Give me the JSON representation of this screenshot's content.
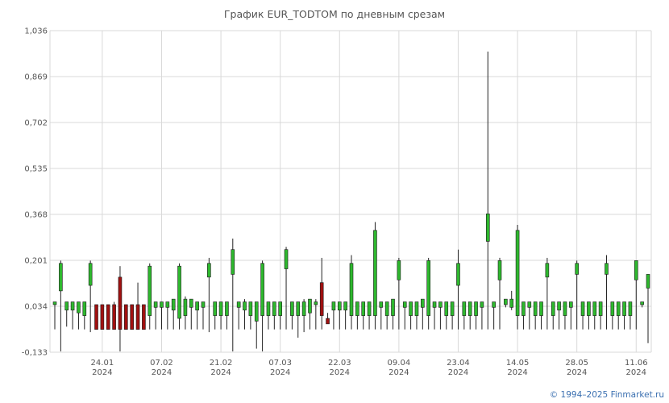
{
  "title": "График EUR_TODTOM по дневным срезам",
  "copyright": "© 1994–2025 Finmarket.ru",
  "colors": {
    "up": "#2eb82e",
    "down": "#a01010",
    "wick": "#222222",
    "grid": "#d9d9d9"
  },
  "chart_data": {
    "type": "candlestick",
    "title": "График EUR_TODTOM по дневным срезам",
    "ylim": [
      -0.133,
      1.036
    ],
    "yticks": [
      "1,036",
      "0,869",
      "0,702",
      "0,535",
      "0,368",
      "0,201",
      "0,034",
      "-0,133"
    ],
    "yticks_values": [
      1.036,
      0.869,
      0.702,
      0.535,
      0.368,
      0.201,
      0.034,
      -0.133
    ],
    "xticks": [
      {
        "index": 8,
        "line1": "24.01",
        "line2": "2024"
      },
      {
        "index": 18,
        "line1": "07.02",
        "line2": "2024"
      },
      {
        "index": 28,
        "line1": "21.02",
        "line2": "2024"
      },
      {
        "index": 38,
        "line1": "07.03",
        "line2": "2024"
      },
      {
        "index": 48,
        "line1": "22.03",
        "line2": "2024"
      },
      {
        "index": 58,
        "line1": "09.04",
        "line2": "2024"
      },
      {
        "index": 68,
        "line1": "23.04",
        "line2": "2024"
      },
      {
        "index": 78,
        "line1": "14.05",
        "line2": "2024"
      },
      {
        "index": 88,
        "line1": "28.05",
        "line2": "2024"
      },
      {
        "index": 98,
        "line1": "11.06",
        "line2": "2024"
      }
    ],
    "grid": true,
    "candles": [
      {
        "o": 0.04,
        "h": 0.05,
        "l": -0.05,
        "c": 0.05
      },
      {
        "o": 0.09,
        "h": 0.2,
        "l": -0.13,
        "c": 0.19
      },
      {
        "o": 0.02,
        "h": 0.05,
        "l": -0.04,
        "c": 0.05
      },
      {
        "o": 0.02,
        "h": 0.05,
        "l": -0.05,
        "c": 0.05
      },
      {
        "o": 0.01,
        "h": 0.05,
        "l": -0.05,
        "c": 0.05
      },
      {
        "o": 0.0,
        "h": 0.05,
        "l": -0.05,
        "c": 0.05
      },
      {
        "o": 0.11,
        "h": 0.2,
        "l": -0.06,
        "c": 0.19
      },
      {
        "o": 0.04,
        "h": 0.04,
        "l": -0.05,
        "c": -0.05
      },
      {
        "o": 0.04,
        "h": 0.04,
        "l": -0.05,
        "c": -0.05
      },
      {
        "o": 0.04,
        "h": 0.04,
        "l": -0.05,
        "c": -0.05
      },
      {
        "o": 0.04,
        "h": 0.05,
        "l": -0.05,
        "c": -0.05
      },
      {
        "o": 0.14,
        "h": 0.18,
        "l": -0.13,
        "c": -0.05
      },
      {
        "o": 0.04,
        "h": 0.04,
        "l": -0.05,
        "c": -0.05
      },
      {
        "o": 0.04,
        "h": 0.04,
        "l": -0.05,
        "c": -0.05
      },
      {
        "o": 0.04,
        "h": 0.12,
        "l": -0.05,
        "c": -0.05
      },
      {
        "o": 0.04,
        "h": 0.04,
        "l": -0.05,
        "c": -0.05
      },
      {
        "o": 0.0,
        "h": 0.19,
        "l": -0.05,
        "c": 0.18
      },
      {
        "o": 0.03,
        "h": 0.05,
        "l": -0.05,
        "c": 0.05
      },
      {
        "o": 0.03,
        "h": 0.05,
        "l": -0.05,
        "c": 0.05
      },
      {
        "o": 0.03,
        "h": 0.05,
        "l": -0.05,
        "c": 0.05
      },
      {
        "o": 0.02,
        "h": 0.06,
        "l": -0.05,
        "c": 0.06
      },
      {
        "o": -0.01,
        "h": 0.19,
        "l": -0.05,
        "c": 0.18
      },
      {
        "o": 0.0,
        "h": 0.07,
        "l": -0.05,
        "c": 0.06
      },
      {
        "o": 0.03,
        "h": 0.06,
        "l": -0.05,
        "c": 0.06
      },
      {
        "o": 0.02,
        "h": 0.05,
        "l": -0.05,
        "c": 0.05
      },
      {
        "o": 0.03,
        "h": 0.05,
        "l": -0.05,
        "c": 0.05
      },
      {
        "o": 0.14,
        "h": 0.21,
        "l": -0.06,
        "c": 0.19
      },
      {
        "o": 0.0,
        "h": 0.05,
        "l": -0.05,
        "c": 0.05
      },
      {
        "o": 0.0,
        "h": 0.05,
        "l": -0.05,
        "c": 0.05
      },
      {
        "o": 0.0,
        "h": 0.05,
        "l": -0.05,
        "c": 0.05
      },
      {
        "o": 0.15,
        "h": 0.28,
        "l": -0.13,
        "c": 0.24
      },
      {
        "o": 0.03,
        "h": 0.05,
        "l": -0.05,
        "c": 0.05
      },
      {
        "o": 0.02,
        "h": 0.06,
        "l": -0.05,
        "c": 0.05
      },
      {
        "o": 0.0,
        "h": 0.05,
        "l": -0.05,
        "c": 0.05
      },
      {
        "o": -0.02,
        "h": 0.05,
        "l": -0.12,
        "c": 0.05
      },
      {
        "o": 0.0,
        "h": 0.2,
        "l": -0.13,
        "c": 0.19
      },
      {
        "o": 0.0,
        "h": 0.05,
        "l": -0.05,
        "c": 0.05
      },
      {
        "o": 0.0,
        "h": 0.05,
        "l": -0.05,
        "c": 0.05
      },
      {
        "o": 0.0,
        "h": 0.05,
        "l": -0.05,
        "c": 0.05
      },
      {
        "o": 0.17,
        "h": 0.25,
        "l": -0.05,
        "c": 0.24
      },
      {
        "o": 0.0,
        "h": 0.05,
        "l": -0.05,
        "c": 0.05
      },
      {
        "o": 0.0,
        "h": 0.05,
        "l": -0.08,
        "c": 0.05
      },
      {
        "o": 0.0,
        "h": 0.06,
        "l": -0.06,
        "c": 0.05
      },
      {
        "o": 0.01,
        "h": 0.06,
        "l": -0.05,
        "c": 0.06
      },
      {
        "o": 0.04,
        "h": 0.06,
        "l": -0.05,
        "c": 0.05
      },
      {
        "o": 0.12,
        "h": 0.21,
        "l": -0.05,
        "c": 0.0
      },
      {
        "o": -0.01,
        "h": 0.01,
        "l": -0.02,
        "c": -0.03
      },
      {
        "o": 0.02,
        "h": 0.05,
        "l": -0.05,
        "c": 0.05
      },
      {
        "o": 0.02,
        "h": 0.05,
        "l": -0.05,
        "c": 0.05
      },
      {
        "o": 0.02,
        "h": 0.05,
        "l": -0.05,
        "c": 0.05
      },
      {
        "o": 0.0,
        "h": 0.22,
        "l": -0.05,
        "c": 0.19
      },
      {
        "o": 0.0,
        "h": 0.05,
        "l": -0.05,
        "c": 0.05
      },
      {
        "o": 0.0,
        "h": 0.05,
        "l": -0.05,
        "c": 0.05
      },
      {
        "o": 0.0,
        "h": 0.05,
        "l": -0.05,
        "c": 0.05
      },
      {
        "o": 0.0,
        "h": 0.34,
        "l": -0.05,
        "c": 0.31
      },
      {
        "o": 0.03,
        "h": 0.05,
        "l": -0.05,
        "c": 0.05
      },
      {
        "o": 0.0,
        "h": 0.05,
        "l": -0.05,
        "c": 0.05
      },
      {
        "o": 0.0,
        "h": 0.05,
        "l": -0.05,
        "c": 0.06
      },
      {
        "o": 0.13,
        "h": 0.21,
        "l": -0.05,
        "c": 0.2
      },
      {
        "o": 0.03,
        "h": 0.05,
        "l": -0.05,
        "c": 0.05
      },
      {
        "o": 0.0,
        "h": 0.05,
        "l": -0.05,
        "c": 0.05
      },
      {
        "o": 0.0,
        "h": 0.05,
        "l": -0.05,
        "c": 0.05
      },
      {
        "o": 0.03,
        "h": 0.05,
        "l": -0.05,
        "c": 0.06
      },
      {
        "o": 0.0,
        "h": 0.21,
        "l": -0.05,
        "c": 0.2
      },
      {
        "o": 0.03,
        "h": 0.05,
        "l": -0.05,
        "c": 0.05
      },
      {
        "o": 0.03,
        "h": 0.05,
        "l": -0.05,
        "c": 0.05
      },
      {
        "o": 0.0,
        "h": 0.05,
        "l": -0.05,
        "c": 0.05
      },
      {
        "o": 0.0,
        "h": 0.05,
        "l": -0.05,
        "c": 0.05
      },
      {
        "o": 0.11,
        "h": 0.24,
        "l": -0.05,
        "c": 0.19
      },
      {
        "o": 0.0,
        "h": 0.05,
        "l": -0.05,
        "c": 0.05
      },
      {
        "o": 0.0,
        "h": 0.05,
        "l": -0.05,
        "c": 0.05
      },
      {
        "o": 0.0,
        "h": 0.05,
        "l": -0.05,
        "c": 0.05
      },
      {
        "o": 0.03,
        "h": 0.05,
        "l": -0.05,
        "c": 0.05
      },
      {
        "o": 0.27,
        "h": 0.96,
        "l": -0.05,
        "c": 0.37
      },
      {
        "o": 0.03,
        "h": 0.05,
        "l": -0.05,
        "c": 0.05
      },
      {
        "o": 0.13,
        "h": 0.21,
        "l": -0.05,
        "c": 0.2
      },
      {
        "o": 0.04,
        "h": 0.06,
        "l": 0.03,
        "c": 0.06
      },
      {
        "o": 0.03,
        "h": 0.09,
        "l": 0.02,
        "c": 0.06
      },
      {
        "o": 0.0,
        "h": 0.33,
        "l": -0.05,
        "c": 0.31
      },
      {
        "o": 0.0,
        "h": 0.05,
        "l": -0.05,
        "c": 0.05
      },
      {
        "o": 0.03,
        "h": 0.05,
        "l": -0.05,
        "c": 0.05
      },
      {
        "o": 0.0,
        "h": 0.05,
        "l": -0.05,
        "c": 0.05
      },
      {
        "o": 0.0,
        "h": 0.05,
        "l": -0.05,
        "c": 0.05
      },
      {
        "o": 0.14,
        "h": 0.21,
        "l": -0.05,
        "c": 0.19
      },
      {
        "o": 0.0,
        "h": 0.05,
        "l": -0.05,
        "c": 0.05
      },
      {
        "o": 0.02,
        "h": 0.05,
        "l": -0.05,
        "c": 0.05
      },
      {
        "o": 0.0,
        "h": 0.05,
        "l": -0.05,
        "c": 0.05
      },
      {
        "o": 0.03,
        "h": 0.05,
        "l": -0.05,
        "c": 0.05
      },
      {
        "o": 0.15,
        "h": 0.2,
        "l": -0.05,
        "c": 0.19
      },
      {
        "o": 0.0,
        "h": 0.05,
        "l": -0.05,
        "c": 0.05
      },
      {
        "o": 0.0,
        "h": 0.05,
        "l": -0.05,
        "c": 0.05
      },
      {
        "o": 0.0,
        "h": 0.05,
        "l": -0.05,
        "c": 0.05
      },
      {
        "o": 0.0,
        "h": 0.05,
        "l": -0.05,
        "c": 0.05
      },
      {
        "o": 0.15,
        "h": 0.22,
        "l": -0.05,
        "c": 0.19
      },
      {
        "o": 0.0,
        "h": 0.05,
        "l": -0.05,
        "c": 0.05
      },
      {
        "o": 0.0,
        "h": 0.05,
        "l": -0.05,
        "c": 0.05
      },
      {
        "o": 0.0,
        "h": 0.05,
        "l": -0.05,
        "c": 0.05
      },
      {
        "o": 0.0,
        "h": 0.05,
        "l": -0.05,
        "c": 0.05
      },
      {
        "o": 0.13,
        "h": 0.2,
        "l": -0.05,
        "c": 0.2
      },
      {
        "o": 0.04,
        "h": 0.05,
        "l": 0.03,
        "c": 0.05
      },
      {
        "o": 0.1,
        "h": 0.15,
        "l": -0.1,
        "c": 0.15
      }
    ]
  }
}
